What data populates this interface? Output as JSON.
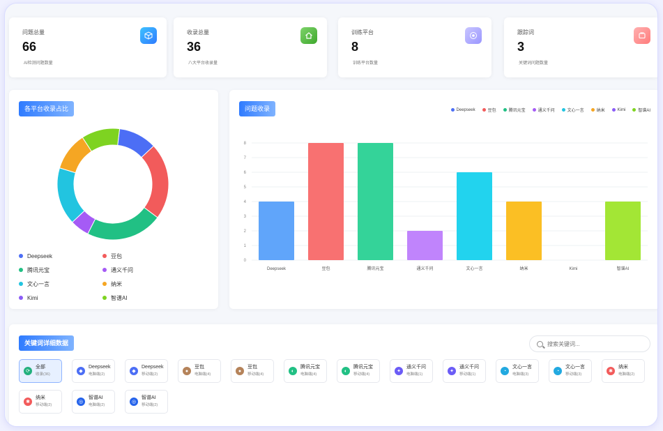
{
  "stats": [
    {
      "label": "问题总量",
      "value": "66",
      "sub": "AI检测问题数量",
      "color": "#3aa0ff"
    },
    {
      "label": "收录总量",
      "value": "36",
      "sub": "八大平台收录量",
      "color": "#5ac33c"
    },
    {
      "label": "训练平台",
      "value": "8",
      "sub": "训练平台数量",
      "color": "#a9a6ff"
    },
    {
      "label": "跟踪词",
      "value": "3",
      "sub": "关键词问题数量",
      "color": "#ff8f8f"
    }
  ],
  "pie_panel": {
    "title": "各平台收录占比",
    "legend": [
      {
        "name": "Deepseek",
        "color": "#4c6ef5"
      },
      {
        "name": "豆包",
        "color": "#f25b5b"
      },
      {
        "name": "腾讯元宝",
        "color": "#21c084"
      },
      {
        "name": "通义千问",
        "color": "#a55bf5"
      },
      {
        "name": "文心一言",
        "color": "#22c4e0"
      },
      {
        "name": "纳米",
        "color": "#f5a623"
      },
      {
        "name": "Kimi",
        "color": "#8b5cf6"
      },
      {
        "name": "智谱AI",
        "color": "#7ed321"
      }
    ]
  },
  "bar_panel": {
    "title": "问题收录",
    "legend": [
      {
        "name": "Deepseek",
        "color": "#4c6ef5"
      },
      {
        "name": "豆包",
        "color": "#f25b5b"
      },
      {
        "name": "腾讯元宝",
        "color": "#21c084"
      },
      {
        "name": "通义千问",
        "color": "#a55bf5"
      },
      {
        "name": "文心一言",
        "color": "#22c4e0"
      },
      {
        "name": "纳米",
        "color": "#f5a623"
      },
      {
        "name": "Kimi",
        "color": "#8b5cf6"
      },
      {
        "name": "智谱AI",
        "color": "#7ed321"
      }
    ]
  },
  "chart_data": [
    {
      "type": "pie",
      "title": "各平台收录占比",
      "donut": true,
      "categories": [
        "Deepseek",
        "豆包",
        "腾讯元宝",
        "通义千问",
        "文心一言",
        "纳米",
        "Kimi",
        "智谱AI"
      ],
      "values": [
        4,
        8,
        8,
        2,
        6,
        4,
        0,
        4
      ],
      "colors": [
        "#4c6ef5",
        "#f25b5b",
        "#21c084",
        "#a55bf5",
        "#22c4e0",
        "#f5a623",
        "#8b5cf6",
        "#7ed321"
      ]
    },
    {
      "type": "bar",
      "title": "问题收录",
      "categories": [
        "Deepseek",
        "豆包",
        "腾讯元宝",
        "通义千问",
        "文心一言",
        "纳米",
        "Kimi",
        "智谱AI"
      ],
      "values": [
        4,
        8,
        8,
        2,
        6,
        4,
        0,
        4
      ],
      "colors": [
        "#60a5fa",
        "#f87171",
        "#34d399",
        "#c084fc",
        "#22d3ee",
        "#fbbf24",
        "#818cf8",
        "#a3e635"
      ],
      "yticks": [
        0,
        1,
        2,
        3,
        4,
        5,
        6,
        7,
        8
      ],
      "ylim": [
        0,
        8
      ],
      "grid": true
    }
  ],
  "keywords": {
    "title": "关键词详细数据",
    "search_placeholder": "搜索关键词...",
    "chips": [
      {
        "name": "全部",
        "sub": "收录(36)",
        "icon": "all-icon",
        "color": "#22b07d",
        "active": true
      },
      {
        "name": "Deepseek",
        "sub": "电脑端(2)",
        "icon": "deepseek-icon",
        "color": "#4c6ef5"
      },
      {
        "name": "Deepseek",
        "sub": "移动端(2)",
        "icon": "deepseek-icon",
        "color": "#4c6ef5"
      },
      {
        "name": "豆包",
        "sub": "电脑端(4)",
        "icon": "doubao-icon",
        "color": "#b5835a"
      },
      {
        "name": "豆包",
        "sub": "移动端(4)",
        "icon": "doubao-icon",
        "color": "#b5835a"
      },
      {
        "name": "腾讯元宝",
        "sub": "电脑端(4)",
        "icon": "yuanbao-icon",
        "color": "#21c084"
      },
      {
        "name": "腾讯元宝",
        "sub": "移动端(4)",
        "icon": "yuanbao-icon",
        "color": "#21c084"
      },
      {
        "name": "通义千问",
        "sub": "电脑端(1)",
        "icon": "tongyi-icon",
        "color": "#6b5cf6"
      },
      {
        "name": "通义千问",
        "sub": "移动端(1)",
        "icon": "tongyi-icon",
        "color": "#6b5cf6"
      },
      {
        "name": "文心一言",
        "sub": "电脑端(3)",
        "icon": "wenxin-icon",
        "color": "#22a9e0"
      },
      {
        "name": "文心一言",
        "sub": "移动端(3)",
        "icon": "wenxin-icon",
        "color": "#22a9e0"
      },
      {
        "name": "纳米",
        "sub": "电脑端(2)",
        "icon": "nami-icon",
        "color": "#f25b5b"
      },
      {
        "name": "纳米",
        "sub": "移动端(2)",
        "icon": "nami-icon",
        "color": "#f25b5b"
      },
      {
        "name": "智谱AI",
        "sub": "电脑端(2)",
        "icon": "zhipu-icon",
        "color": "#2563eb"
      },
      {
        "name": "智谱AI",
        "sub": "移动端(2)",
        "icon": "zhipu-icon",
        "color": "#2563eb"
      }
    ]
  }
}
